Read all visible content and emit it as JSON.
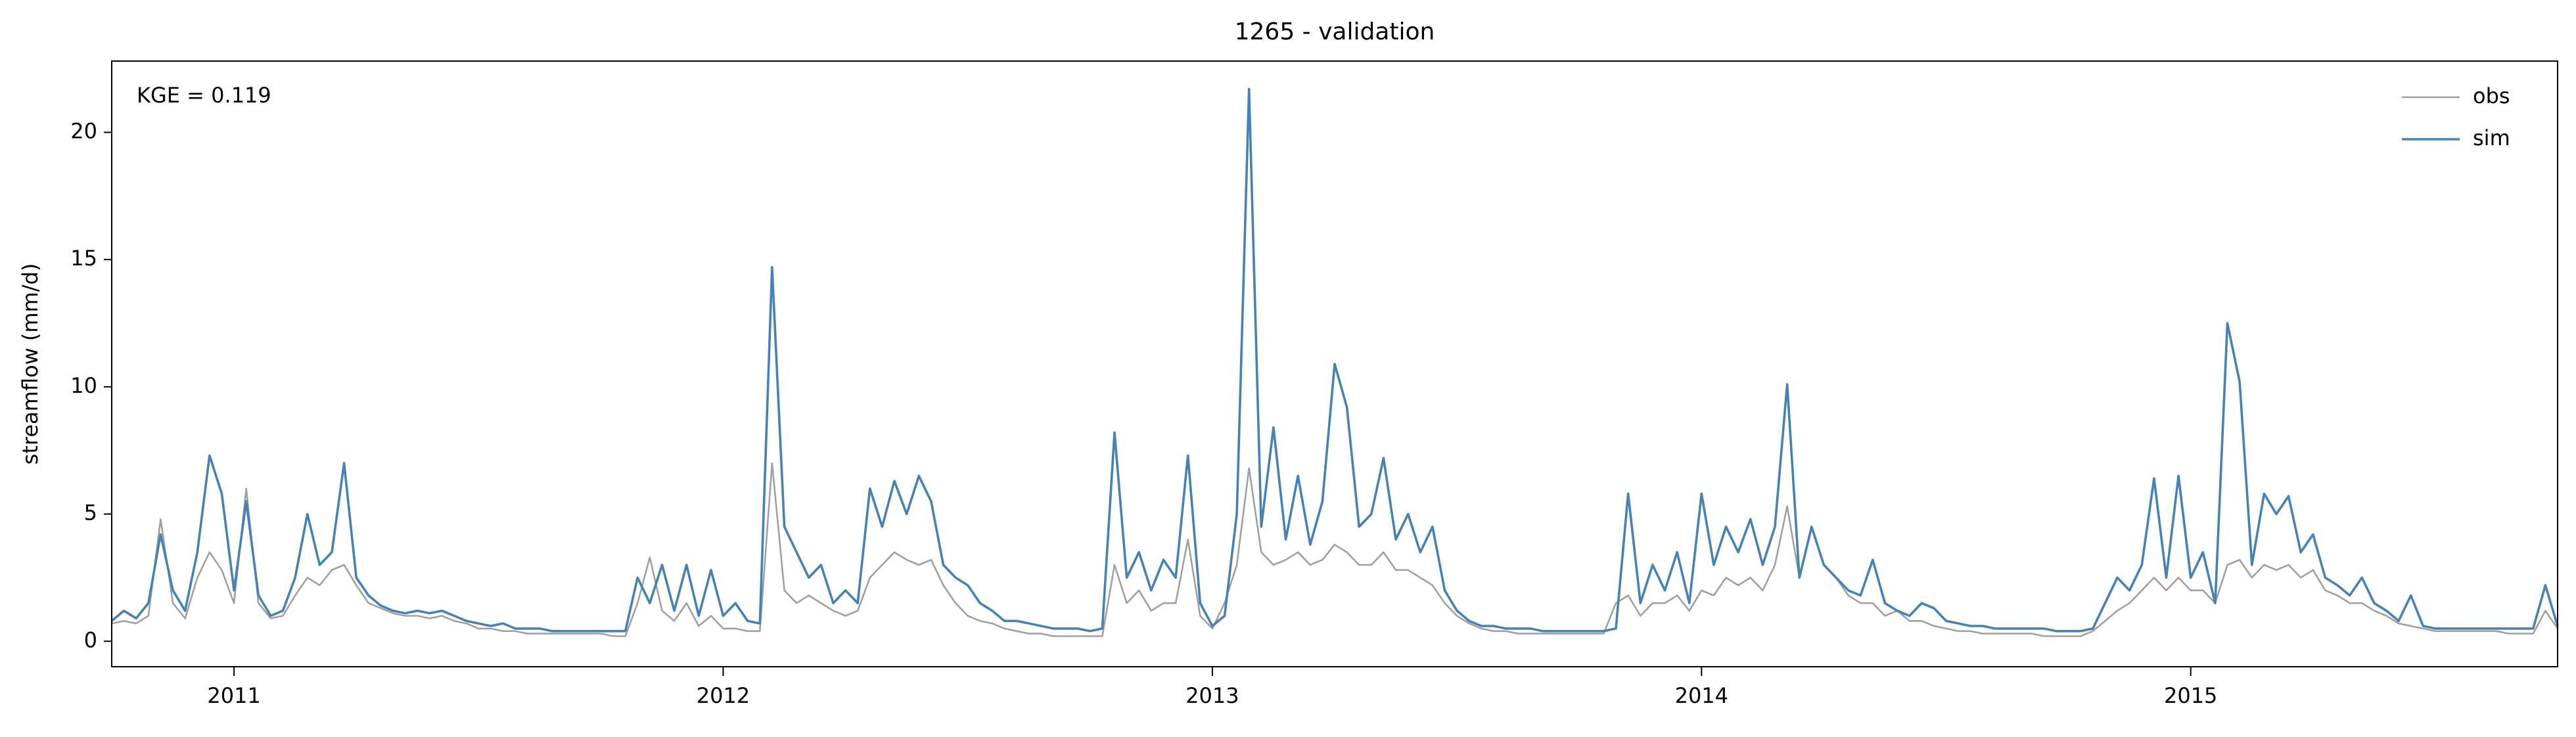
{
  "chart_data": {
    "type": "line",
    "title": "1265 - validation",
    "ylabel": "streamflow (mm/d)",
    "annotation": "KGE = 0.119",
    "legend": "upper right",
    "xlim": [
      2010.75,
      2015.75
    ],
    "xticks": [
      2011,
      2012,
      2013,
      2014,
      2015
    ],
    "ylim": [
      -1.0,
      22.8
    ],
    "yticks": [
      0,
      5,
      10,
      15,
      20
    ],
    "x": [
      2010.75,
      2010.775,
      2010.8,
      2010.825,
      2010.85,
      2010.875,
      2010.9,
      2010.925,
      2010.95,
      2010.975,
      2011,
      2011.025,
      2011.05,
      2011.075,
      2011.1,
      2011.125,
      2011.15,
      2011.175,
      2011.2,
      2011.225,
      2011.25,
      2011.275,
      2011.3,
      2011.325,
      2011.35,
      2011.375,
      2011.4,
      2011.425,
      2011.45,
      2011.475,
      2011.5,
      2011.525,
      2011.55,
      2011.575,
      2011.6,
      2011.625,
      2011.65,
      2011.675,
      2011.7,
      2011.725,
      2011.75,
      2011.775,
      2011.8,
      2011.825,
      2011.85,
      2011.875,
      2011.9,
      2011.925,
      2011.95,
      2011.975,
      2012,
      2012.025,
      2012.05,
      2012.075,
      2012.1,
      2012.125,
      2012.15,
      2012.175,
      2012.2,
      2012.225,
      2012.25,
      2012.275,
      2012.3,
      2012.325,
      2012.35,
      2012.375,
      2012.4,
      2012.425,
      2012.45,
      2012.475,
      2012.5,
      2012.525,
      2012.55,
      2012.575,
      2012.6,
      2012.625,
      2012.65,
      2012.675,
      2012.7,
      2012.725,
      2012.75,
      2012.775,
      2012.8,
      2012.825,
      2012.85,
      2012.875,
      2012.9,
      2012.925,
      2012.95,
      2012.975,
      2013,
      2013.025,
      2013.05,
      2013.075,
      2013.1,
      2013.125,
      2013.15,
      2013.175,
      2013.2,
      2013.225,
      2013.25,
      2013.275,
      2013.3,
      2013.325,
      2013.35,
      2013.375,
      2013.4,
      2013.425,
      2013.45,
      2013.475,
      2013.5,
      2013.525,
      2013.55,
      2013.575,
      2013.6,
      2013.625,
      2013.65,
      2013.675,
      2013.7,
      2013.725,
      2013.75,
      2013.775,
      2013.8,
      2013.825,
      2013.85,
      2013.875,
      2013.9,
      2013.925,
      2013.95,
      2013.975,
      2014,
      2014.025,
      2014.05,
      2014.075,
      2014.1,
      2014.125,
      2014.15,
      2014.175,
      2014.2,
      2014.225,
      2014.25,
      2014.275,
      2014.3,
      2014.325,
      2014.35,
      2014.375,
      2014.4,
      2014.425,
      2014.45,
      2014.475,
      2014.5,
      2014.525,
      2014.55,
      2014.575,
      2014.6,
      2014.625,
      2014.65,
      2014.675,
      2014.7,
      2014.725,
      2014.75,
      2014.775,
      2014.8,
      2014.825,
      2014.85,
      2014.875,
      2014.9,
      2014.925,
      2014.95,
      2014.975,
      2015,
      2015.025,
      2015.05,
      2015.075,
      2015.1,
      2015.125,
      2015.15,
      2015.175,
      2015.2,
      2015.225,
      2015.25,
      2015.275,
      2015.3,
      2015.325,
      2015.35,
      2015.375,
      2015.4,
      2015.425,
      2015.45,
      2015.475,
      2015.5,
      2015.525,
      2015.55,
      2015.575,
      2015.6,
      2015.625,
      2015.65,
      2015.675,
      2015.7,
      2015.725,
      2015.75
    ],
    "series": [
      {
        "name": "obs",
        "color": "#a0a0a0",
        "values": [
          0.7,
          0.8,
          0.7,
          1.0,
          4.8,
          1.5,
          0.9,
          2.5,
          3.5,
          2.8,
          1.5,
          6.0,
          1.5,
          0.9,
          1.0,
          1.8,
          2.5,
          2.2,
          2.8,
          3.0,
          2.2,
          1.5,
          1.3,
          1.1,
          1.0,
          1.0,
          0.9,
          1.0,
          0.8,
          0.7,
          0.5,
          0.5,
          0.4,
          0.4,
          0.3,
          0.3,
          0.3,
          0.3,
          0.3,
          0.3,
          0.3,
          0.2,
          0.2,
          1.5,
          3.3,
          1.2,
          0.8,
          1.5,
          0.6,
          1.0,
          0.5,
          0.5,
          0.4,
          0.4,
          7.0,
          2.0,
          1.5,
          1.8,
          1.5,
          1.2,
          1.0,
          1.2,
          2.5,
          3.0,
          3.5,
          3.2,
          3.0,
          3.2,
          2.2,
          1.5,
          1.0,
          0.8,
          0.7,
          0.5,
          0.4,
          0.3,
          0.3,
          0.2,
          0.2,
          0.2,
          0.2,
          0.2,
          3.0,
          1.5,
          2.0,
          1.2,
          1.5,
          1.5,
          4.0,
          1.0,
          0.5,
          1.5,
          3.0,
          6.8,
          3.5,
          3.0,
          3.2,
          3.5,
          3.0,
          3.2,
          3.8,
          3.5,
          3.0,
          3.0,
          3.5,
          2.8,
          2.8,
          2.5,
          2.2,
          1.5,
          1.0,
          0.7,
          0.5,
          0.4,
          0.4,
          0.3,
          0.3,
          0.3,
          0.3,
          0.3,
          0.3,
          0.3,
          0.3,
          1.5,
          1.8,
          1.0,
          1.5,
          1.5,
          1.8,
          1.2,
          2.0,
          1.8,
          2.5,
          2.2,
          2.5,
          2.0,
          3.0,
          5.3,
          2.5,
          4.5,
          3.0,
          2.5,
          1.8,
          1.5,
          1.5,
          1.0,
          1.2,
          0.8,
          0.8,
          0.6,
          0.5,
          0.4,
          0.4,
          0.3,
          0.3,
          0.3,
          0.3,
          0.3,
          0.2,
          0.2,
          0.2,
          0.2,
          0.4,
          0.8,
          1.2,
          1.5,
          2.0,
          2.5,
          2.0,
          2.5,
          2.0,
          2.0,
          1.5,
          3.0,
          3.2,
          2.5,
          3.0,
          2.8,
          3.0,
          2.5,
          2.8,
          2.0,
          1.8,
          1.5,
          1.5,
          1.2,
          1.0,
          0.7,
          0.6,
          0.5,
          0.4,
          0.4,
          0.4,
          0.4,
          0.4,
          0.4,
          0.3,
          0.3,
          0.3,
          1.2,
          0.5
        ]
      },
      {
        "name": "sim",
        "color": "#4682b4",
        "values": [
          0.8,
          1.2,
          0.9,
          1.5,
          4.2,
          2.0,
          1.2,
          3.5,
          7.3,
          5.8,
          2.0,
          5.5,
          1.8,
          1.0,
          1.2,
          2.5,
          5.0,
          3.0,
          3.5,
          7.0,
          2.5,
          1.8,
          1.4,
          1.2,
          1.1,
          1.2,
          1.1,
          1.2,
          1.0,
          0.8,
          0.7,
          0.6,
          0.7,
          0.5,
          0.5,
          0.5,
          0.4,
          0.4,
          0.4,
          0.4,
          0.4,
          0.4,
          0.4,
          2.5,
          1.5,
          3.0,
          1.2,
          3.0,
          1.0,
          2.8,
          1.0,
          1.5,
          0.8,
          0.7,
          14.7,
          4.5,
          3.5,
          2.5,
          3.0,
          1.5,
          2.0,
          1.5,
          6.0,
          4.5,
          6.3,
          5.0,
          6.5,
          5.5,
          3.0,
          2.5,
          2.2,
          1.5,
          1.2,
          0.8,
          0.8,
          0.7,
          0.6,
          0.5,
          0.5,
          0.5,
          0.4,
          0.5,
          8.2,
          2.5,
          3.5,
          2.0,
          3.2,
          2.5,
          7.3,
          1.5,
          0.6,
          1.0,
          5.0,
          21.7,
          4.5,
          8.4,
          4.0,
          6.5,
          3.8,
          5.5,
          10.9,
          9.2,
          4.5,
          5.0,
          7.2,
          4.0,
          5.0,
          3.5,
          4.5,
          2.0,
          1.2,
          0.8,
          0.6,
          0.6,
          0.5,
          0.5,
          0.5,
          0.4,
          0.4,
          0.4,
          0.4,
          0.4,
          0.4,
          0.5,
          5.8,
          1.5,
          3.0,
          2.0,
          3.5,
          1.5,
          5.8,
          3.0,
          4.5,
          3.5,
          4.8,
          3.0,
          4.5,
          10.1,
          2.5,
          4.5,
          3.0,
          2.5,
          2.0,
          1.8,
          3.2,
          1.5,
          1.2,
          1.0,
          1.5,
          1.3,
          0.8,
          0.7,
          0.6,
          0.6,
          0.5,
          0.5,
          0.5,
          0.5,
          0.5,
          0.4,
          0.4,
          0.4,
          0.5,
          1.5,
          2.5,
          2.0,
          3.0,
          6.4,
          2.5,
          6.5,
          2.5,
          3.5,
          1.5,
          12.5,
          10.2,
          3.0,
          5.8,
          5.0,
          5.7,
          3.5,
          4.2,
          2.5,
          2.2,
          1.8,
          2.5,
          1.5,
          1.2,
          0.8,
          1.8,
          0.6,
          0.5,
          0.5,
          0.5,
          0.5,
          0.5,
          0.5,
          0.5,
          0.5,
          0.5,
          2.2,
          0.6
        ]
      }
    ]
  }
}
